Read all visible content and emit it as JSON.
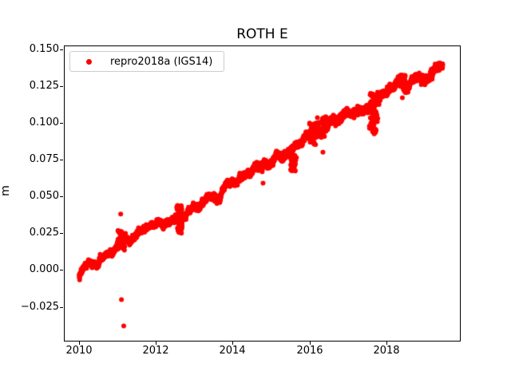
{
  "chart_data": {
    "type": "scatter",
    "title": "ROTH E",
    "xlabel": "",
    "ylabel": "m",
    "xlim": [
      2009.6,
      2019.94
    ],
    "ylim": [
      -0.0485,
      0.1525
    ],
    "grid": false,
    "xticks": {
      "values": [
        2010,
        2012,
        2014,
        2016,
        2018
      ],
      "labels": [
        "2010",
        "2012",
        "2014",
        "2016",
        "2018"
      ]
    },
    "yticks": {
      "values": [
        -0.025,
        0.0,
        0.025,
        0.05,
        0.075,
        0.1,
        0.125,
        0.15
      ],
      "labels": [
        "−0.025",
        "0.000",
        "0.025",
        "0.050",
        "0.075",
        "0.100",
        "0.125",
        "0.150"
      ]
    },
    "legend": {
      "position": "upper left",
      "entries": [
        {
          "label": "repro2018a (IGS14)",
          "color": "#ff0000",
          "marker": "circle"
        }
      ]
    },
    "series": [
      {
        "name": "repro2018a (IGS14)",
        "color": "#ff0000",
        "marker": "circle",
        "marker_radius_px": 3,
        "x_start": 2010.0,
        "x_end": 2019.47,
        "trend_start_m": -0.0025,
        "trend_end_m": 0.1405,
        "slope_m_per_yr": 0.0151,
        "points_per_year": 365,
        "noise_std_m": 0.0008,
        "noise_growth": 0.6,
        "random_walk_step_m": 0.0003,
        "wiggles": [
          {
            "amp": 0.0011,
            "period": 0.45,
            "phase": 0.7
          },
          {
            "amp": 0.0007,
            "period": 1.0,
            "phase": 2.1
          }
        ],
        "clusters": [
          {
            "x_range": [
              2011.0,
              2011.22
            ],
            "y_range": [
              0.013,
              0.027
            ],
            "n": 40
          },
          {
            "x_range": [
              2012.54,
              2012.68
            ],
            "y_range": [
              0.024,
              0.044
            ],
            "n": 60
          },
          {
            "x_range": [
              2015.5,
              2015.66
            ],
            "y_range": [
              0.067,
              0.078
            ],
            "n": 40
          },
          {
            "x_range": [
              2016.0,
              2016.2
            ],
            "y_range": [
              0.085,
              0.1
            ],
            "n": 30
          },
          {
            "x_range": [
              2016.2,
              2016.45
            ],
            "y_range": [
              0.09,
              0.105
            ],
            "n": 30
          },
          {
            "x_range": [
              2017.56,
              2017.78
            ],
            "y_range": [
              0.092,
              0.121
            ],
            "n": 70
          },
          {
            "x_range": [
              2018.3,
              2018.5
            ],
            "y_range": [
              0.1255,
              0.1325
            ],
            "n": 45
          }
        ],
        "outliers": [
          [
            2011.08,
            0.038
          ],
          [
            2011.1,
            -0.02
          ],
          [
            2011.16,
            -0.038
          ],
          [
            2014.79,
            0.059
          ],
          [
            2016.35,
            0.08
          ],
          [
            2018.42,
            0.117
          ]
        ]
      }
    ]
  }
}
